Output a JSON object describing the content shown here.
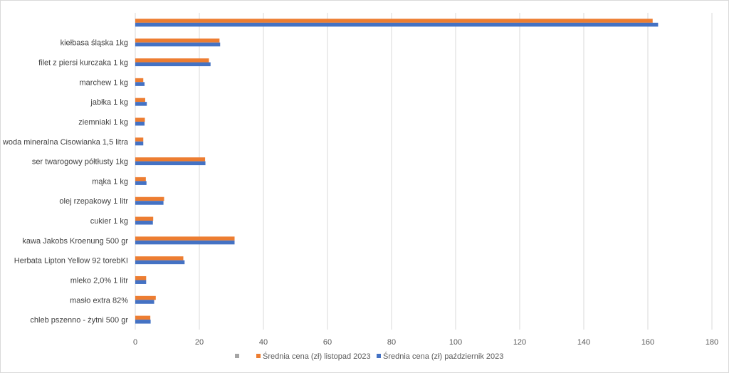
{
  "chart_data": {
    "type": "bar",
    "orientation": "horizontal",
    "categories": [
      "chleb pszenno - żytni 500 gr",
      "masło extra 82%",
      "mleko 2,0% 1 litr",
      "Herbata Lipton Yellow 92 torebKI",
      "kawa Jakobs Kroenung 500 gr",
      "cukier 1 kg",
      "olej rzepakowy 1 litr",
      "mąka 1 kg",
      "ser twarogowy półtłusty 1kg",
      "woda mineralna Cisowianka 1,5 litra",
      "ziemniaki 1 kg",
      "jabłka 1 kg",
      "marchew 1 kg",
      "filet z piersi kurczaka 1 kg",
      "kiełbasa śląska 1kg",
      ""
    ],
    "series": [
      {
        "name": "Średnia cena (zł) listopad 2023",
        "color": "#ED7D31",
        "values": [
          4.7,
          6.4,
          3.4,
          15.0,
          31.0,
          5.6,
          9.0,
          3.3,
          21.8,
          2.5,
          3.0,
          3.1,
          2.5,
          23.0,
          26.3,
          161.5
        ]
      },
      {
        "name": "Średnia cena (zł) październik 2023",
        "color": "#4472C4",
        "values": [
          4.8,
          5.9,
          3.4,
          15.4,
          31.0,
          5.5,
          8.8,
          3.5,
          21.9,
          2.5,
          2.9,
          3.6,
          2.9,
          23.5,
          26.5,
          163.2
        ]
      }
    ],
    "legend": [
      {
        "name": "",
        "color": "#A5A5A5"
      },
      {
        "name": "Średnia cena (zł) listopad 2023",
        "color": "#ED7D31"
      },
      {
        "name": "Średnia cena (zł) październik 2023",
        "color": "#4472C4"
      }
    ],
    "xlim": [
      0,
      180
    ],
    "xticks": [
      0,
      20,
      40,
      60,
      80,
      100,
      120,
      140,
      160,
      180
    ],
    "grid": "vertical",
    "legend_position": "bottom",
    "title": "",
    "xlabel": "",
    "ylabel": ""
  }
}
